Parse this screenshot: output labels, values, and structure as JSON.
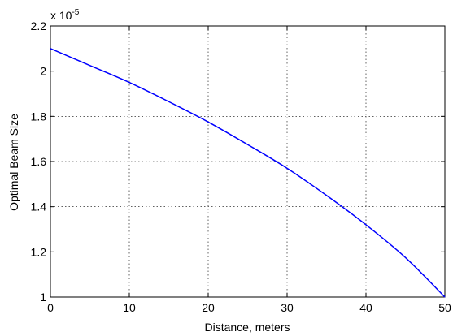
{
  "chart_data": {
    "type": "line",
    "title": "",
    "xlabel": "Distance, meters",
    "ylabel": "Optimal Beam Size",
    "y_multiplier_label": "x 10",
    "y_multiplier_exponent": "-5",
    "xlim": [
      0,
      50
    ],
    "ylim": [
      1,
      2.2
    ],
    "grid": true,
    "x_ticks": [
      0,
      10,
      20,
      30,
      40,
      50
    ],
    "y_ticks": [
      1,
      1.2,
      1.4,
      1.6,
      1.8,
      2,
      2.2
    ],
    "x_tick_labels": [
      "0",
      "10",
      "20",
      "30",
      "40",
      "50"
    ],
    "y_tick_labels": [
      "1",
      "1.2",
      "1.4",
      "1.6",
      "1.8",
      "2",
      "2.2"
    ],
    "series": [
      {
        "color": "#0000ff",
        "x": [
          0,
          5,
          10,
          15,
          20,
          25,
          30,
          35,
          40,
          45,
          50
        ],
        "y": [
          2.1,
          2.025,
          1.95,
          1.865,
          1.775,
          1.675,
          1.57,
          1.45,
          1.32,
          1.175,
          1.0
        ]
      }
    ]
  }
}
